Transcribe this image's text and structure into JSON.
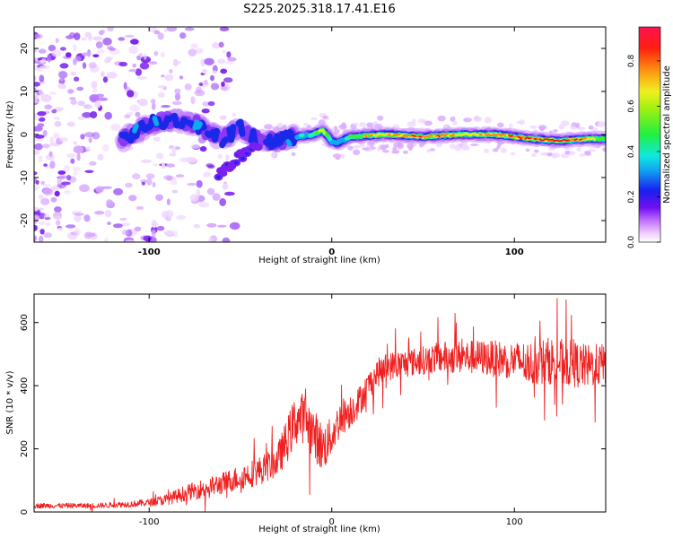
{
  "title": "S225.2025.318.17.41.E16",
  "colors": {
    "snr_line": "#f02020",
    "axis": "#000000",
    "spec_bg": "#ffffff",
    "track_colors": [
      "#f0d8ff",
      "#d8a8ff",
      "#b070ff",
      "#7a1ff0",
      "#1a28e8",
      "#10a8f0",
      "#20f0c0",
      "#40f020",
      "#e8e820",
      "#ff8020",
      "#f01010"
    ]
  },
  "chart_data": [
    {
      "type": "heatmap",
      "name": "spectrogram",
      "xlabel": "Height of straight line (km)",
      "ylabel": "Frequency (Hz)",
      "xlim": [
        -163,
        150
      ],
      "ylim": [
        -25,
        25
      ],
      "xticks": [
        -100,
        0,
        100
      ],
      "xtick_labels": [
        "-100",
        "0",
        "100"
      ],
      "yticks": [
        -20,
        -10,
        0,
        10,
        20
      ],
      "ytick_labels": [
        "-20",
        "-10",
        "0",
        "10",
        "20"
      ],
      "colorbar": {
        "label": "Normalized spectral amplitude",
        "range": [
          0,
          0.95
        ],
        "ticks": [
          0.0,
          0.2,
          0.4,
          0.6,
          0.8
        ],
        "tick_labels": [
          "0.0",
          "0.2",
          "0.4",
          "0.6",
          "0.8"
        ]
      },
      "track_x": [
        -115,
        -100,
        -85,
        -75,
        -60,
        -50,
        -40,
        -30,
        -20,
        -10,
        -5,
        0,
        3,
        10,
        30,
        50,
        70,
        90,
        110,
        125,
        140,
        150
      ],
      "track_freq": [
        -1.5,
        2.5,
        3.5,
        2.5,
        -1,
        1.5,
        -1.5,
        -1.5,
        -0.5,
        0,
        1,
        -1.5,
        -2,
        -0.5,
        0,
        -0.5,
        0,
        0,
        -1,
        -1.5,
        -1,
        -1
      ],
      "track_amplitude": [
        0.25,
        0.3,
        0.25,
        0.3,
        0.2,
        0.25,
        0.25,
        0.3,
        0.35,
        0.5,
        0.65,
        0.4,
        0.35,
        0.55,
        0.75,
        0.8,
        0.7,
        0.75,
        0.85,
        0.9,
        0.7,
        0.55
      ]
    },
    {
      "type": "line",
      "name": "snr",
      "xlabel": "Height of straight line (km)",
      "ylabel": "SNR (10 * v/v)",
      "xlim": [
        -163,
        150
      ],
      "ylim": [
        0,
        690
      ],
      "xticks": [
        -100,
        0,
        100
      ],
      "xtick_labels": [
        "-100",
        "0",
        "100"
      ],
      "yticks": [
        0,
        200,
        400,
        600
      ],
      "ytick_labels": [
        "0",
        "200",
        "400",
        "600"
      ],
      "envelope_x": [
        -163,
        -130,
        -110,
        -100,
        -90,
        -80,
        -70,
        -60,
        -50,
        -40,
        -30,
        -25,
        -20,
        -15,
        -10,
        -5,
        0,
        5,
        10,
        15,
        20,
        25,
        30,
        40,
        50,
        60,
        80,
        100,
        110,
        120,
        130,
        140,
        150
      ],
      "envelope_snr": [
        20,
        20,
        25,
        30,
        40,
        60,
        75,
        90,
        110,
        130,
        160,
        220,
        290,
        300,
        250,
        200,
        240,
        300,
        320,
        350,
        400,
        440,
        460,
        470,
        480,
        490,
        490,
        480,
        470,
        480,
        470,
        460,
        470
      ],
      "noise_amplitude": [
        8,
        8,
        10,
        12,
        18,
        25,
        30,
        35,
        40,
        45,
        50,
        70,
        80,
        80,
        80,
        80,
        60,
        60,
        55,
        50,
        45,
        45,
        45,
        45,
        45,
        50,
        55,
        60,
        70,
        75,
        75,
        70,
        65
      ]
    }
  ]
}
